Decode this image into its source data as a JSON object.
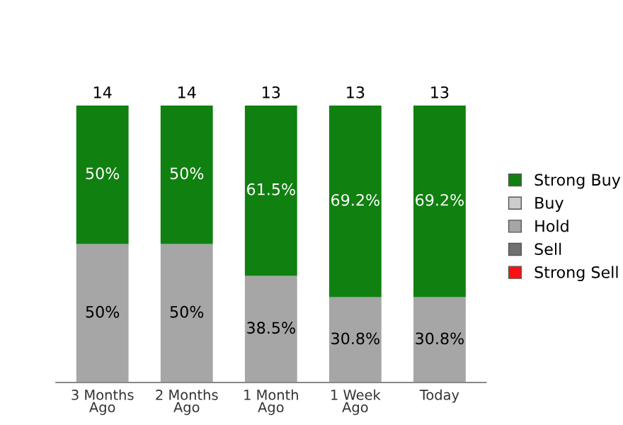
{
  "chart_data": {
    "type": "bar",
    "stacked": true,
    "categories": [
      "3 Months\nAgo",
      "2 Months\nAgo",
      "1 Month\nAgo",
      "1 Week\nAgo",
      "Today"
    ],
    "series": [
      {
        "name": "Strong Sell",
        "color": "#ff1010",
        "values": [
          0,
          0,
          0,
          0,
          0
        ]
      },
      {
        "name": "Sell",
        "color": "#707070",
        "values": [
          0,
          0,
          0,
          0,
          0
        ]
      },
      {
        "name": "Hold",
        "color": "#a6a6a6",
        "values": [
          50,
          50,
          38.5,
          30.8,
          30.8
        ],
        "value_labels": [
          "50%",
          "50%",
          "38.5%",
          "30.8%",
          "30.8%"
        ]
      },
      {
        "name": "Buy",
        "color": "#cccccc",
        "values": [
          0,
          0,
          0,
          0,
          0
        ]
      },
      {
        "name": "Strong Buy",
        "color": "#108010",
        "values": [
          50,
          50,
          61.5,
          69.2,
          69.2
        ],
        "value_labels": [
          "50%",
          "50%",
          "61.5%",
          "69.2%",
          "69.2%"
        ]
      }
    ],
    "annotations": [
      "14",
      "14",
      "13",
      "13",
      "13"
    ],
    "legend": "right",
    "tick_labels": "x",
    "grid": false
  }
}
